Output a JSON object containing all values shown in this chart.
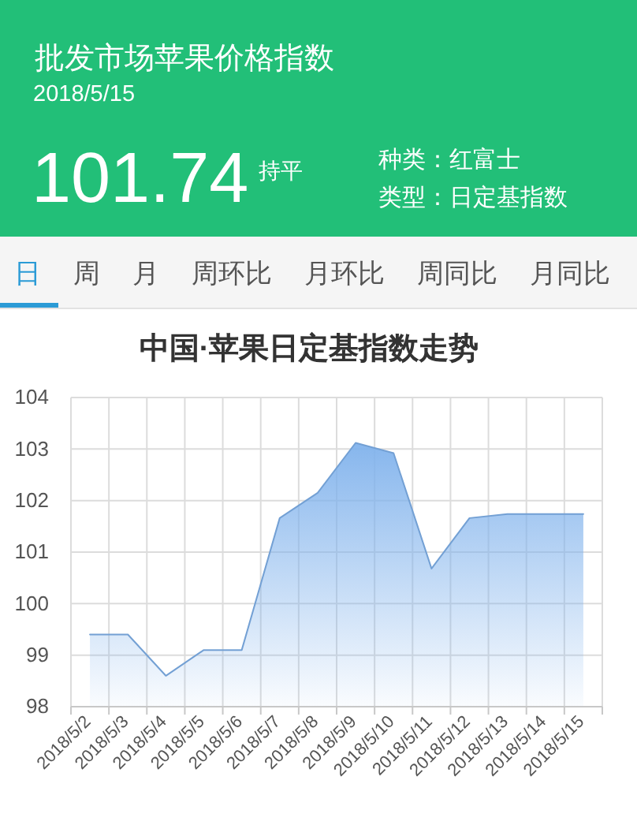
{
  "chart_data": [
    {
      "type": "other",
      "title": "批发市场苹果价格指数",
      "subtitle": "2018/5/15",
      "annotations": [
        "101.74",
        "持平",
        "种类：红富士",
        "类型：日定基指数",
        "日",
        "周",
        "月",
        "周环比",
        "月环比",
        "周同比",
        "月同比"
      ]
    },
    {
      "type": "area",
      "title": "中国·苹果日定基指数走势",
      "categories": [
        "2018/5/2",
        "2018/5/3",
        "2018/5/4",
        "2018/5/5",
        "2018/5/6",
        "2018/5/7",
        "2018/5/8",
        "2018/5/9",
        "2018/5/10",
        "2018/5/11",
        "2018/5/12",
        "2018/5/13",
        "2018/5/14",
        "2018/5/15"
      ],
      "values": [
        99.4,
        99.4,
        98.6,
        99.1,
        99.1,
        101.66,
        102.15,
        103.12,
        102.92,
        100.68,
        101.66,
        101.74,
        101.74,
        101.74
      ],
      "color": "#80b2ec",
      "ylim": [
        98,
        104
      ],
      "yticks": [
        98,
        99,
        100,
        101,
        102,
        103,
        104
      ],
      "grid": true
    }
  ]
}
